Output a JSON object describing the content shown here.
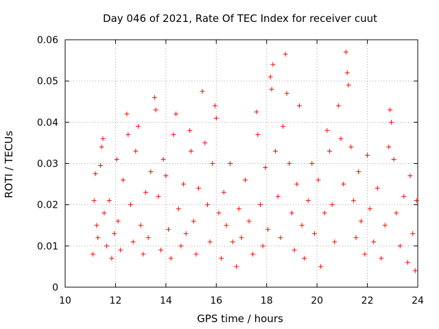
{
  "chart_data": {
    "type": "scatter",
    "title": "Day 046 of 2021, Rate Of TEC Index for receiver cuut",
    "xlabel": "GPS time / hours",
    "ylabel": "ROTI / TECUs",
    "xlim": [
      10,
      24
    ],
    "ylim": [
      0,
      0.06
    ],
    "xticks": [
      10,
      12,
      14,
      16,
      18,
      20,
      22,
      24
    ],
    "yticks": [
      0,
      0.01,
      0.02,
      0.03,
      0.04,
      0.05,
      0.06
    ],
    "xtick_labels": [
      "10",
      "12",
      "14",
      "16",
      "18",
      "20",
      "22",
      "24"
    ],
    "ytick_labels": [
      "0",
      "0.01",
      "0.02",
      "0.03",
      "0.04",
      "0.05",
      "0.06"
    ],
    "grid": true,
    "marker": "+",
    "color": "#ff0000",
    "series": [
      {
        "name": "ROTI",
        "points": [
          [
            11.1,
            0.008
          ],
          [
            11.15,
            0.021
          ],
          [
            11.2,
            0.0275
          ],
          [
            11.25,
            0.015
          ],
          [
            11.3,
            0.012
          ],
          [
            11.4,
            0.0295
          ],
          [
            11.45,
            0.034
          ],
          [
            11.5,
            0.036
          ],
          [
            11.55,
            0.018
          ],
          [
            11.65,
            0.01
          ],
          [
            11.75,
            0.021
          ],
          [
            11.85,
            0.007
          ],
          [
            11.95,
            0.013
          ],
          [
            12.05,
            0.031
          ],
          [
            12.1,
            0.016
          ],
          [
            12.2,
            0.009
          ],
          [
            12.3,
            0.026
          ],
          [
            12.45,
            0.042
          ],
          [
            12.5,
            0.037
          ],
          [
            12.6,
            0.02
          ],
          [
            12.7,
            0.011
          ],
          [
            12.8,
            0.033
          ],
          [
            12.9,
            0.039
          ],
          [
            13.0,
            0.015
          ],
          [
            13.1,
            0.008
          ],
          [
            13.2,
            0.023
          ],
          [
            13.3,
            0.012
          ],
          [
            13.4,
            0.028
          ],
          [
            13.55,
            0.046
          ],
          [
            13.6,
            0.043
          ],
          [
            13.7,
            0.022
          ],
          [
            13.8,
            0.009
          ],
          [
            13.9,
            0.031
          ],
          [
            14.0,
            0.027
          ],
          [
            14.1,
            0.014
          ],
          [
            14.2,
            0.007
          ],
          [
            14.3,
            0.037
          ],
          [
            14.4,
            0.042
          ],
          [
            14.5,
            0.019
          ],
          [
            14.6,
            0.01
          ],
          [
            14.7,
            0.025
          ],
          [
            14.8,
            0.013
          ],
          [
            14.95,
            0.038
          ],
          [
            15.0,
            0.033
          ],
          [
            15.1,
            0.016
          ],
          [
            15.2,
            0.008
          ],
          [
            15.3,
            0.024
          ],
          [
            15.45,
            0.0475
          ],
          [
            15.55,
            0.035
          ],
          [
            15.65,
            0.02
          ],
          [
            15.75,
            0.011
          ],
          [
            15.85,
            0.03
          ],
          [
            15.95,
            0.044
          ],
          [
            16.0,
            0.041
          ],
          [
            16.1,
            0.018
          ],
          [
            16.2,
            0.007
          ],
          [
            16.3,
            0.023
          ],
          [
            16.4,
            0.015
          ],
          [
            16.55,
            0.03
          ],
          [
            16.65,
            0.011
          ],
          [
            16.8,
            0.005
          ],
          [
            16.9,
            0.019
          ],
          [
            17.0,
            0.012
          ],
          [
            17.15,
            0.026
          ],
          [
            17.3,
            0.016
          ],
          [
            17.45,
            0.008
          ],
          [
            17.6,
            0.0425
          ],
          [
            17.65,
            0.037
          ],
          [
            17.75,
            0.02
          ],
          [
            17.85,
            0.01
          ],
          [
            17.95,
            0.029
          ],
          [
            18.05,
            0.014
          ],
          [
            18.15,
            0.051
          ],
          [
            18.2,
            0.048
          ],
          [
            18.25,
            0.054
          ],
          [
            18.35,
            0.033
          ],
          [
            18.45,
            0.022
          ],
          [
            18.55,
            0.012
          ],
          [
            18.65,
            0.039
          ],
          [
            18.75,
            0.0565
          ],
          [
            18.8,
            0.047
          ],
          [
            18.9,
            0.03
          ],
          [
            19.0,
            0.018
          ],
          [
            19.1,
            0.009
          ],
          [
            19.2,
            0.025
          ],
          [
            19.3,
            0.044
          ],
          [
            19.4,
            0.015
          ],
          [
            19.5,
            0.007
          ],
          [
            19.65,
            0.021
          ],
          [
            19.8,
            0.03
          ],
          [
            19.9,
            0.013
          ],
          [
            20.05,
            0.026
          ],
          [
            20.15,
            0.005
          ],
          [
            20.3,
            0.018
          ],
          [
            20.4,
            0.038
          ],
          [
            20.5,
            0.033
          ],
          [
            20.6,
            0.02
          ],
          [
            20.7,
            0.011
          ],
          [
            20.85,
            0.044
          ],
          [
            20.95,
            0.036
          ],
          [
            21.05,
            0.025
          ],
          [
            21.15,
            0.057
          ],
          [
            21.2,
            0.052
          ],
          [
            21.25,
            0.049
          ],
          [
            21.35,
            0.034
          ],
          [
            21.45,
            0.021
          ],
          [
            21.55,
            0.012
          ],
          [
            21.65,
            0.028
          ],
          [
            21.75,
            0.016
          ],
          [
            21.9,
            0.008
          ],
          [
            22.0,
            0.032
          ],
          [
            22.1,
            0.019
          ],
          [
            22.25,
            0.011
          ],
          [
            22.4,
            0.024
          ],
          [
            22.55,
            0.007
          ],
          [
            22.7,
            0.015
          ],
          [
            22.85,
            0.034
          ],
          [
            22.9,
            0.043
          ],
          [
            22.95,
            0.04
          ],
          [
            23.05,
            0.031
          ],
          [
            23.15,
            0.018
          ],
          [
            23.3,
            0.01
          ],
          [
            23.45,
            0.022
          ],
          [
            23.6,
            0.006
          ],
          [
            23.7,
            0.027
          ],
          [
            23.8,
            0.013
          ],
          [
            23.9,
            0.004
          ],
          [
            23.95,
            0.021
          ]
        ]
      }
    ]
  }
}
